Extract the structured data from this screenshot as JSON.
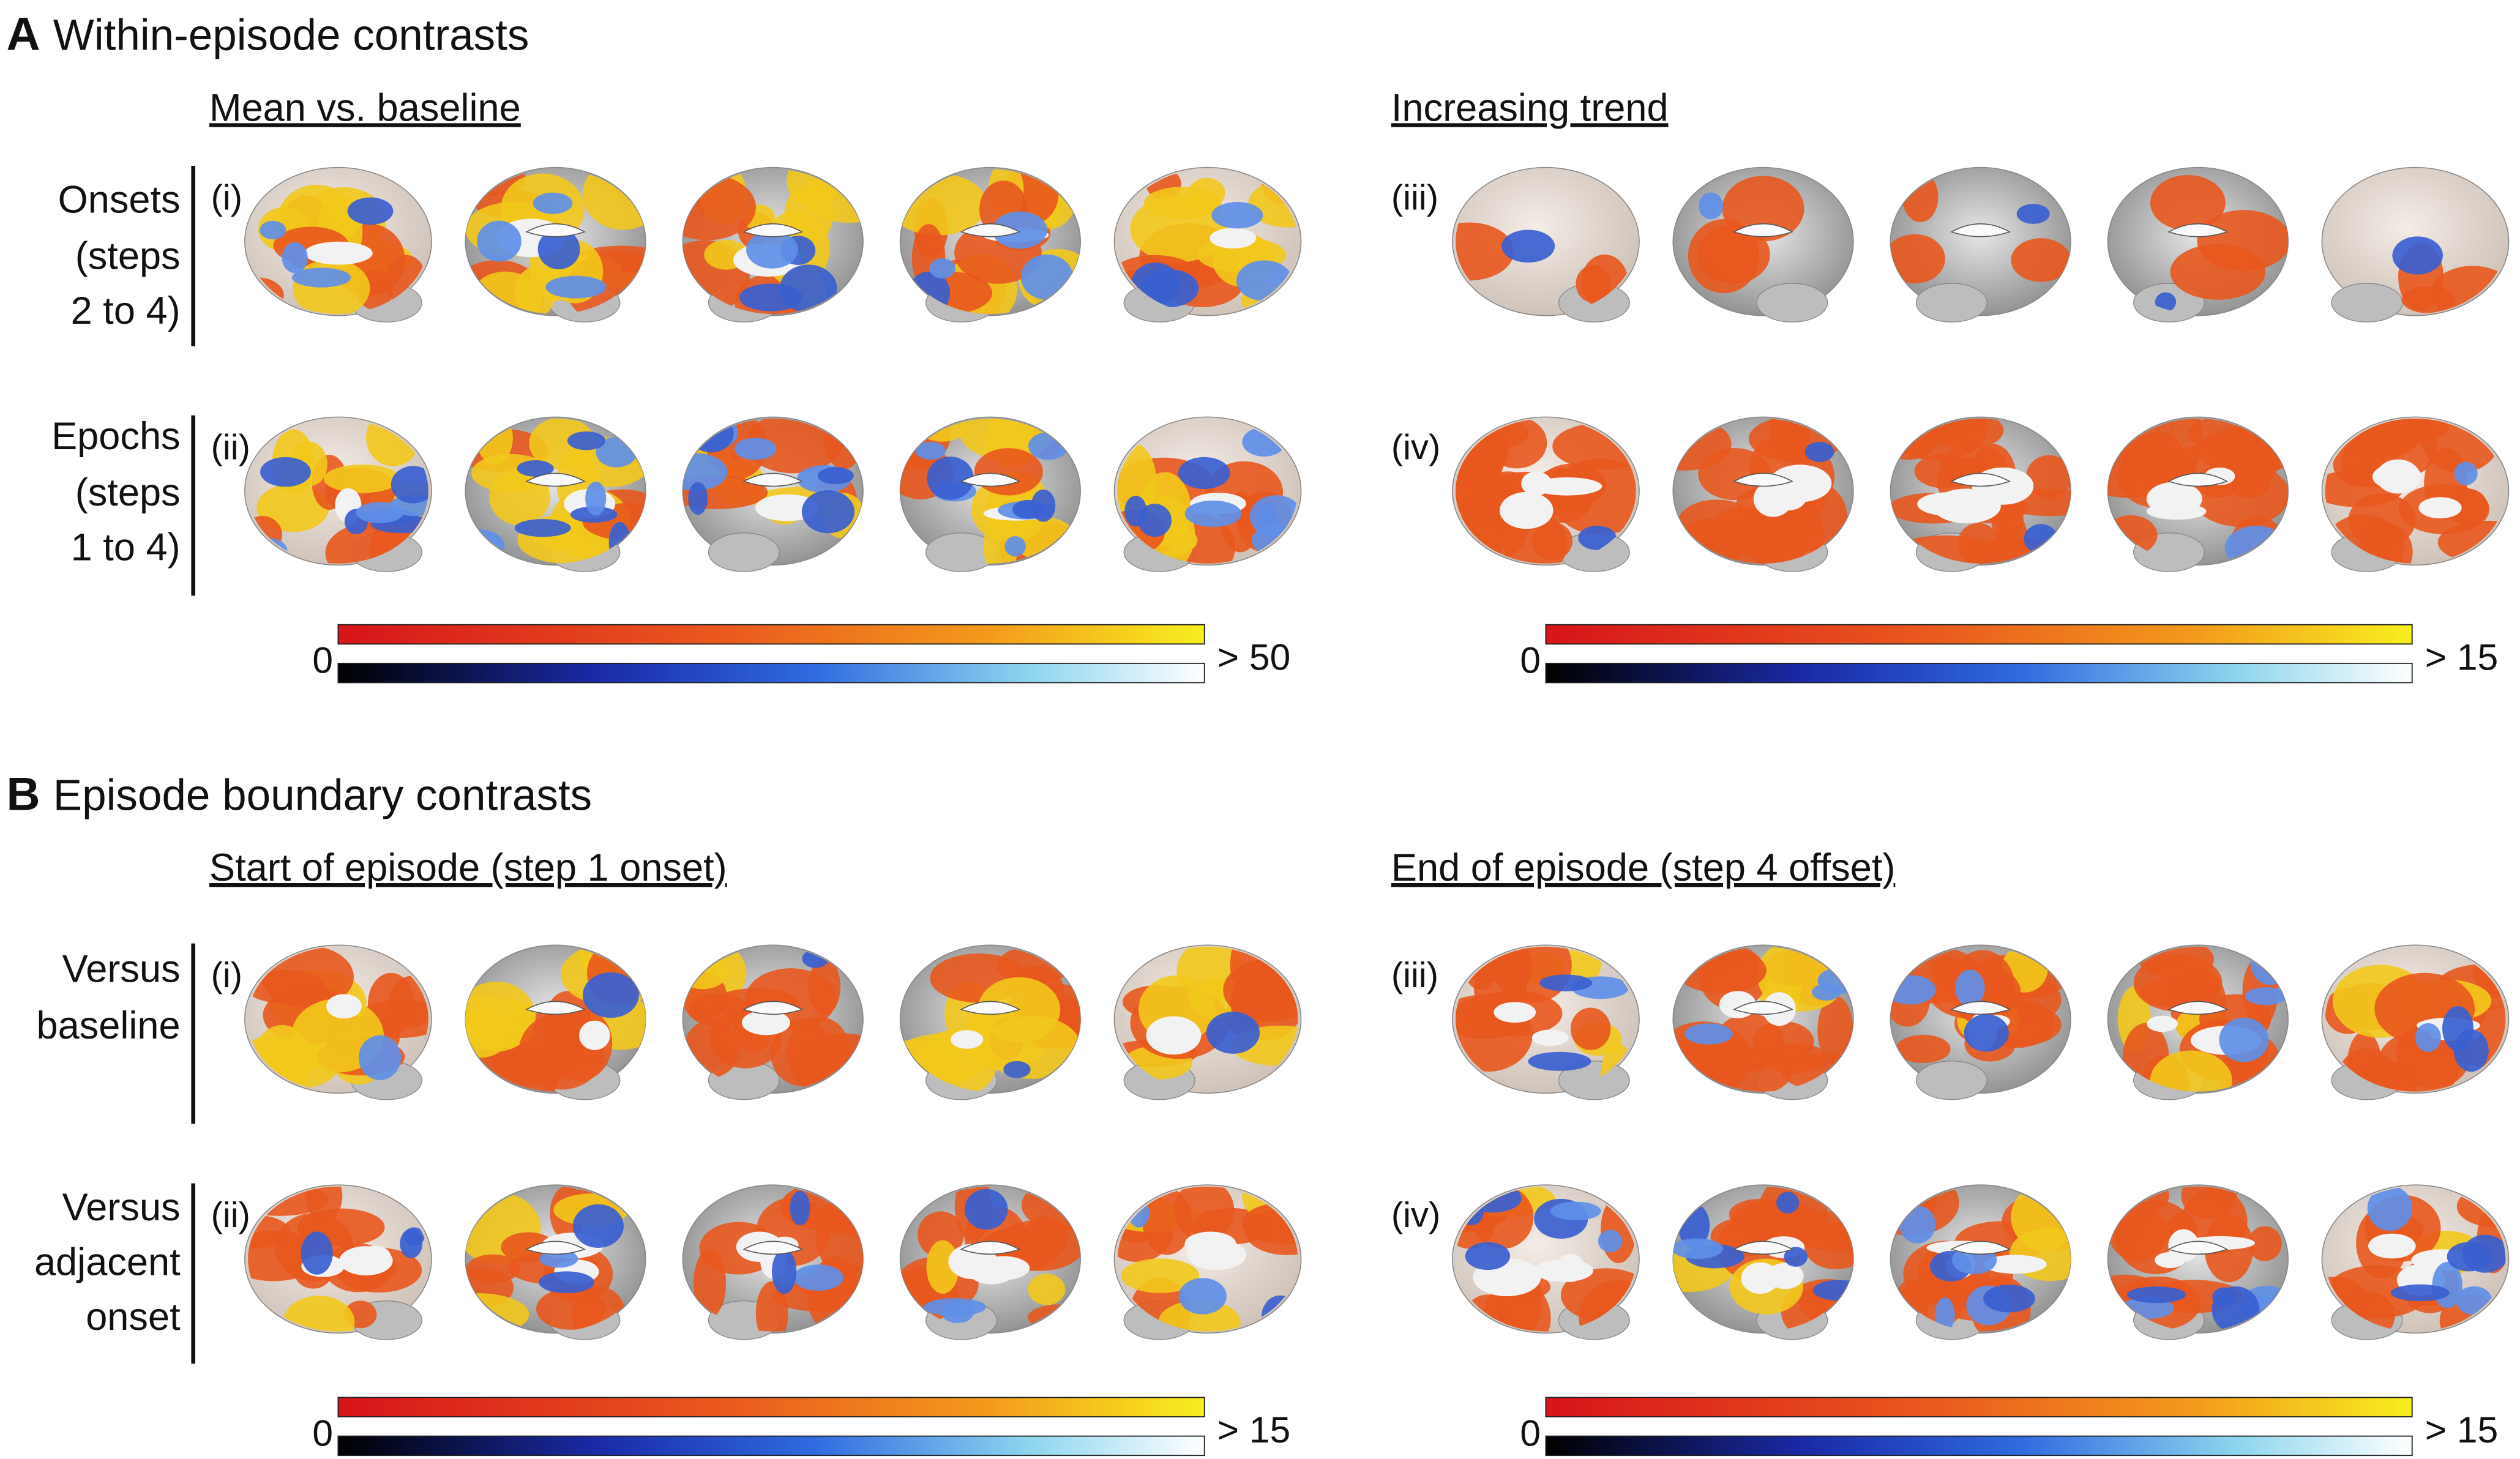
{
  "panels": [
    {
      "letter": "A",
      "title": "Within-episode contrasts",
      "columns": [
        {
          "heading": "Mean vs. baseline",
          "colorbar": {
            "min": "0",
            "max": "> 50"
          }
        },
        {
          "heading": "Increasing trend",
          "colorbar": {
            "min": "0",
            "max": "> 15"
          }
        }
      ],
      "rows": [
        {
          "label": [
            "Onsets",
            "(steps",
            "2 to 4)"
          ],
          "numerals": [
            "(i)",
            "(iii)"
          ]
        },
        {
          "label": [
            "Epochs",
            "(steps",
            "1 to 4)"
          ],
          "numerals": [
            "(ii)",
            "(iv)"
          ]
        }
      ]
    },
    {
      "letter": "B",
      "title": "Episode boundary contrasts",
      "columns": [
        {
          "heading": "Start of episode (step 1 onset)",
          "colorbar": {
            "min": "0",
            "max": "> 15"
          }
        },
        {
          "heading": "End of episode (step 4 offset)",
          "colorbar": {
            "min": "0",
            "max": "> 15"
          }
        }
      ],
      "rows": [
        {
          "label": [
            "Versus",
            "baseline"
          ],
          "numerals": [
            "(i)",
            "(iii)"
          ]
        },
        {
          "label": [
            "Versus",
            "adjacent",
            "onset"
          ],
          "numerals": [
            "(ii)",
            "(iv)"
          ]
        }
      ]
    }
  ]
}
